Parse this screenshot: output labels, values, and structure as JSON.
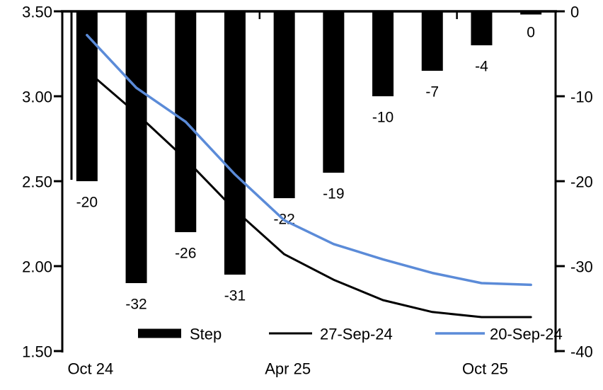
{
  "chart_data": {
    "type": "combo",
    "title": "",
    "n_categories": 10,
    "background": "#FFFFFF",
    "grid": false,
    "x_tick_labels": [
      {
        "category_index": 0,
        "label": "Oct 24"
      },
      {
        "category_index": 4,
        "label": "Apr 25"
      },
      {
        "category_index": 8,
        "label": "Oct 25"
      }
    ],
    "bar_series": {
      "name": "Step",
      "type": "bar",
      "axis": "right",
      "color": "#000000",
      "values": [
        -20,
        -32,
        -26,
        -31,
        -22,
        -19,
        -10,
        -7,
        -4,
        0
      ],
      "data_labels": [
        "-20",
        "-32",
        "-26",
        "-31",
        "-22",
        "-19",
        "-10",
        "-7",
        "-4",
        "0"
      ]
    },
    "line_series": [
      {
        "name": "27-Sep-24",
        "type": "line",
        "axis": "left",
        "color": "#000000",
        "values": [
          3.15,
          2.9,
          2.63,
          2.33,
          2.07,
          1.92,
          1.8,
          1.73,
          1.7,
          1.7
        ]
      },
      {
        "name": "20-Sep-24",
        "type": "line",
        "axis": "left",
        "color": "#5B8BD8",
        "values": [
          3.36,
          3.05,
          2.85,
          2.54,
          2.27,
          2.13,
          2.04,
          1.96,
          1.9,
          1.89
        ]
      }
    ],
    "left_axis": {
      "min": 1.5,
      "max": 3.5,
      "tick_labels": [
        "3.50",
        "3.00",
        "2.50",
        "2.00",
        "1.50"
      ]
    },
    "right_axis": {
      "min": -40,
      "max": 0,
      "tick_labels": [
        "0",
        "-10",
        "-20",
        "-30",
        "-40"
      ]
    },
    "legend": [
      {
        "label": "Step",
        "swatch": "bar",
        "color": "#000000"
      },
      {
        "label": "27-Sep-24",
        "swatch": "line",
        "color": "#000000"
      },
      {
        "label": "20-Sep-24",
        "swatch": "line",
        "color": "#5B8BD8"
      }
    ]
  }
}
